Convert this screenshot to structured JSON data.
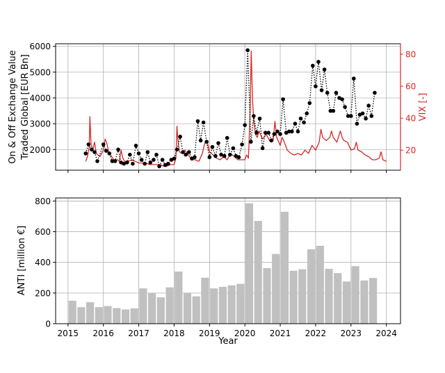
{
  "chart_data": [
    {
      "type": "line",
      "panel": "top",
      "ylabel_lines": [
        "On & Off Exchange Value",
        "Traded Global [EUR Bn]"
      ],
      "y2label": "VIX [-]",
      "ylim": [
        1200,
        6100
      ],
      "y2lim": [
        7.5,
        86.5
      ],
      "xlim": [
        2014.65,
        2024.4
      ],
      "yticks": [
        "2000",
        "3000",
        "4000",
        "5000",
        "6000"
      ],
      "y2ticks": [
        "20",
        "40",
        "60",
        "80"
      ],
      "grid": true,
      "colors": {
        "traded": "#000000",
        "vix": "#d62728",
        "axis2": "#d62728"
      },
      "series": [
        {
          "key": "traded",
          "style": "dotted-with-markers",
          "x": [
            2015.5,
            2015.58,
            2015.67,
            2015.75,
            2015.83,
            2016.0,
            2016.08,
            2016.17,
            2016.25,
            2016.33,
            2016.42,
            2016.5,
            2016.58,
            2016.67,
            2016.75,
            2016.83,
            2016.92,
            2017.0,
            2017.08,
            2017.17,
            2017.25,
            2017.33,
            2017.42,
            2017.5,
            2017.58,
            2017.67,
            2017.75,
            2017.83,
            2017.92,
            2018.0,
            2018.08,
            2018.17,
            2018.25,
            2018.33,
            2018.42,
            2018.5,
            2018.58,
            2018.67,
            2018.75,
            2018.83,
            2018.92,
            2019.0,
            2019.08,
            2019.17,
            2019.25,
            2019.33,
            2019.42,
            2019.5,
            2019.58,
            2019.67,
            2019.75,
            2019.83,
            2019.92,
            2020.0,
            2020.08,
            2020.17,
            2020.25,
            2020.33,
            2020.42,
            2020.5,
            2020.58,
            2020.67,
            2020.75,
            2020.83,
            2020.92,
            2021.0,
            2021.08,
            2021.17,
            2021.25,
            2021.33,
            2021.42,
            2021.5,
            2021.58,
            2021.67,
            2021.75,
            2021.83,
            2021.92,
            2022.0,
            2022.08,
            2022.17,
            2022.25,
            2022.33,
            2022.42,
            2022.5,
            2022.58,
            2022.67,
            2022.75,
            2022.83,
            2022.92,
            2023.0,
            2023.08,
            2023.17,
            2023.25,
            2023.33,
            2023.42,
            2023.5,
            2023.58,
            2023.67
          ],
          "y": [
            1850,
            2200,
            2000,
            1900,
            1550,
            2200,
            1950,
            1850,
            1550,
            1550,
            2000,
            1500,
            1450,
            1500,
            1800,
            1450,
            2150,
            1850,
            1600,
            1450,
            1900,
            1500,
            1600,
            1800,
            1350,
            1600,
            1400,
            1450,
            1600,
            1650,
            2000,
            2500,
            1900,
            1800,
            1900,
            1650,
            1700,
            3100,
            2350,
            3050,
            2300,
            1700,
            2100,
            1750,
            2250,
            1800,
            1750,
            2450,
            1800,
            2050,
            1750,
            1700,
            2200,
            2950,
            5850,
            2300,
            3300,
            2650,
            3200,
            2050,
            2650,
            2650,
            2350,
            2600,
            2700,
            2600,
            3950,
            2650,
            2700,
            2700,
            3000,
            2700,
            3200,
            3050,
            3400,
            3800,
            5250,
            4450,
            5400,
            4300,
            5100,
            4200,
            3500,
            3500,
            4200,
            4000,
            3950,
            3650,
            3300,
            3300,
            4750,
            3000,
            3350,
            3400,
            3200,
            3700,
            3300,
            4200
          ]
        },
        {
          "key": "vix",
          "style": "line",
          "x": [
            2015.5,
            2015.55,
            2015.6,
            2015.62,
            2015.65,
            2015.7,
            2015.75,
            2015.8,
            2015.85,
            2015.9,
            2016.0,
            2016.05,
            2016.1,
            2016.15,
            2016.2,
            2016.3,
            2016.4,
            2016.45,
            2016.5,
            2016.55,
            2016.6,
            2016.7,
            2016.8,
            2016.9,
            2017.0,
            2017.1,
            2017.2,
            2017.3,
            2017.4,
            2017.5,
            2017.6,
            2017.7,
            2017.8,
            2017.9,
            2018.0,
            2018.05,
            2018.08,
            2018.1,
            2018.15,
            2018.2,
            2018.3,
            2018.4,
            2018.5,
            2018.6,
            2018.7,
            2018.8,
            2018.85,
            2018.9,
            2018.95,
            2019.0,
            2019.1,
            2019.2,
            2019.3,
            2019.4,
            2019.5,
            2019.6,
            2019.7,
            2019.8,
            2019.9,
            2020.0,
            2020.05,
            2020.1,
            2020.15,
            2020.18,
            2020.2,
            2020.22,
            2020.25,
            2020.3,
            2020.35,
            2020.4,
            2020.5,
            2020.6,
            2020.7,
            2020.8,
            2020.85,
            2020.9,
            2021.0,
            2021.05,
            2021.1,
            2021.2,
            2021.3,
            2021.4,
            2021.5,
            2021.6,
            2021.7,
            2021.8,
            2021.9,
            2022.0,
            2022.1,
            2022.15,
            2022.2,
            2022.3,
            2022.4,
            2022.45,
            2022.5,
            2022.6,
            2022.7,
            2022.75,
            2022.8,
            2022.9,
            2023.0,
            2023.1,
            2023.15,
            2023.2,
            2023.3,
            2023.4,
            2023.5,
            2023.6,
            2023.7,
            2023.8,
            2023.85,
            2023.9,
            2024.0
          ],
          "y": [
            13,
            16,
            22,
            41,
            24,
            20,
            25,
            18,
            17,
            16,
            20,
            27,
            24,
            19,
            17,
            14,
            14,
            13,
            20,
            15,
            13,
            13,
            14,
            13,
            12,
            12,
            12,
            11,
            11,
            11,
            11,
            10,
            10,
            11,
            11,
            15,
            35,
            28,
            19,
            18,
            20,
            17,
            14,
            14,
            13,
            18,
            23,
            26,
            24,
            19,
            17,
            15,
            14,
            16,
            14,
            18,
            16,
            14,
            14,
            14,
            17,
            15,
            45,
            82,
            65,
            50,
            38,
            30,
            28,
            32,
            27,
            30,
            26,
            26,
            38,
            28,
            23,
            28,
            26,
            20,
            18,
            17,
            18,
            17,
            20,
            18,
            23,
            20,
            25,
            33,
            28,
            26,
            28,
            32,
            28,
            25,
            32,
            28,
            26,
            25,
            20,
            21,
            25,
            20,
            19,
            17,
            16,
            14,
            14,
            15,
            19,
            14,
            13
          ]
        }
      ]
    },
    {
      "type": "bar",
      "panel": "bottom",
      "xlabel": "Year",
      "ylabel": "ANTI [million €]",
      "ylim": [
        0,
        820
      ],
      "xlim": [
        2014.65,
        2024.4
      ],
      "xticks": [
        "2015",
        "2016",
        "2017",
        "2018",
        "2019",
        "2020",
        "2021",
        "2022",
        "2023",
        "2024"
      ],
      "yticks": [
        "0",
        "200",
        "400",
        "600",
        "800"
      ],
      "grid": true,
      "colors": {
        "bars": "#c0c0c0"
      },
      "x": [
        2015.125,
        2015.375,
        2015.625,
        2015.875,
        2016.125,
        2016.375,
        2016.625,
        2016.875,
        2017.125,
        2017.375,
        2017.625,
        2017.875,
        2018.125,
        2018.375,
        2018.625,
        2018.875,
        2019.125,
        2019.375,
        2019.625,
        2019.875,
        2020.125,
        2020.375,
        2020.625,
        2020.875,
        2021.125,
        2021.375,
        2021.625,
        2021.875,
        2022.125,
        2022.375,
        2022.625,
        2022.875,
        2023.125,
        2023.375,
        2023.625
      ],
      "values": [
        150,
        108,
        140,
        108,
        115,
        102,
        93,
        100,
        230,
        198,
        172,
        237,
        340,
        200,
        178,
        300,
        230,
        240,
        250,
        260,
        785,
        670,
        363,
        455,
        730,
        345,
        355,
        485,
        508,
        358,
        330,
        275,
        375,
        282,
        298
      ]
    }
  ]
}
